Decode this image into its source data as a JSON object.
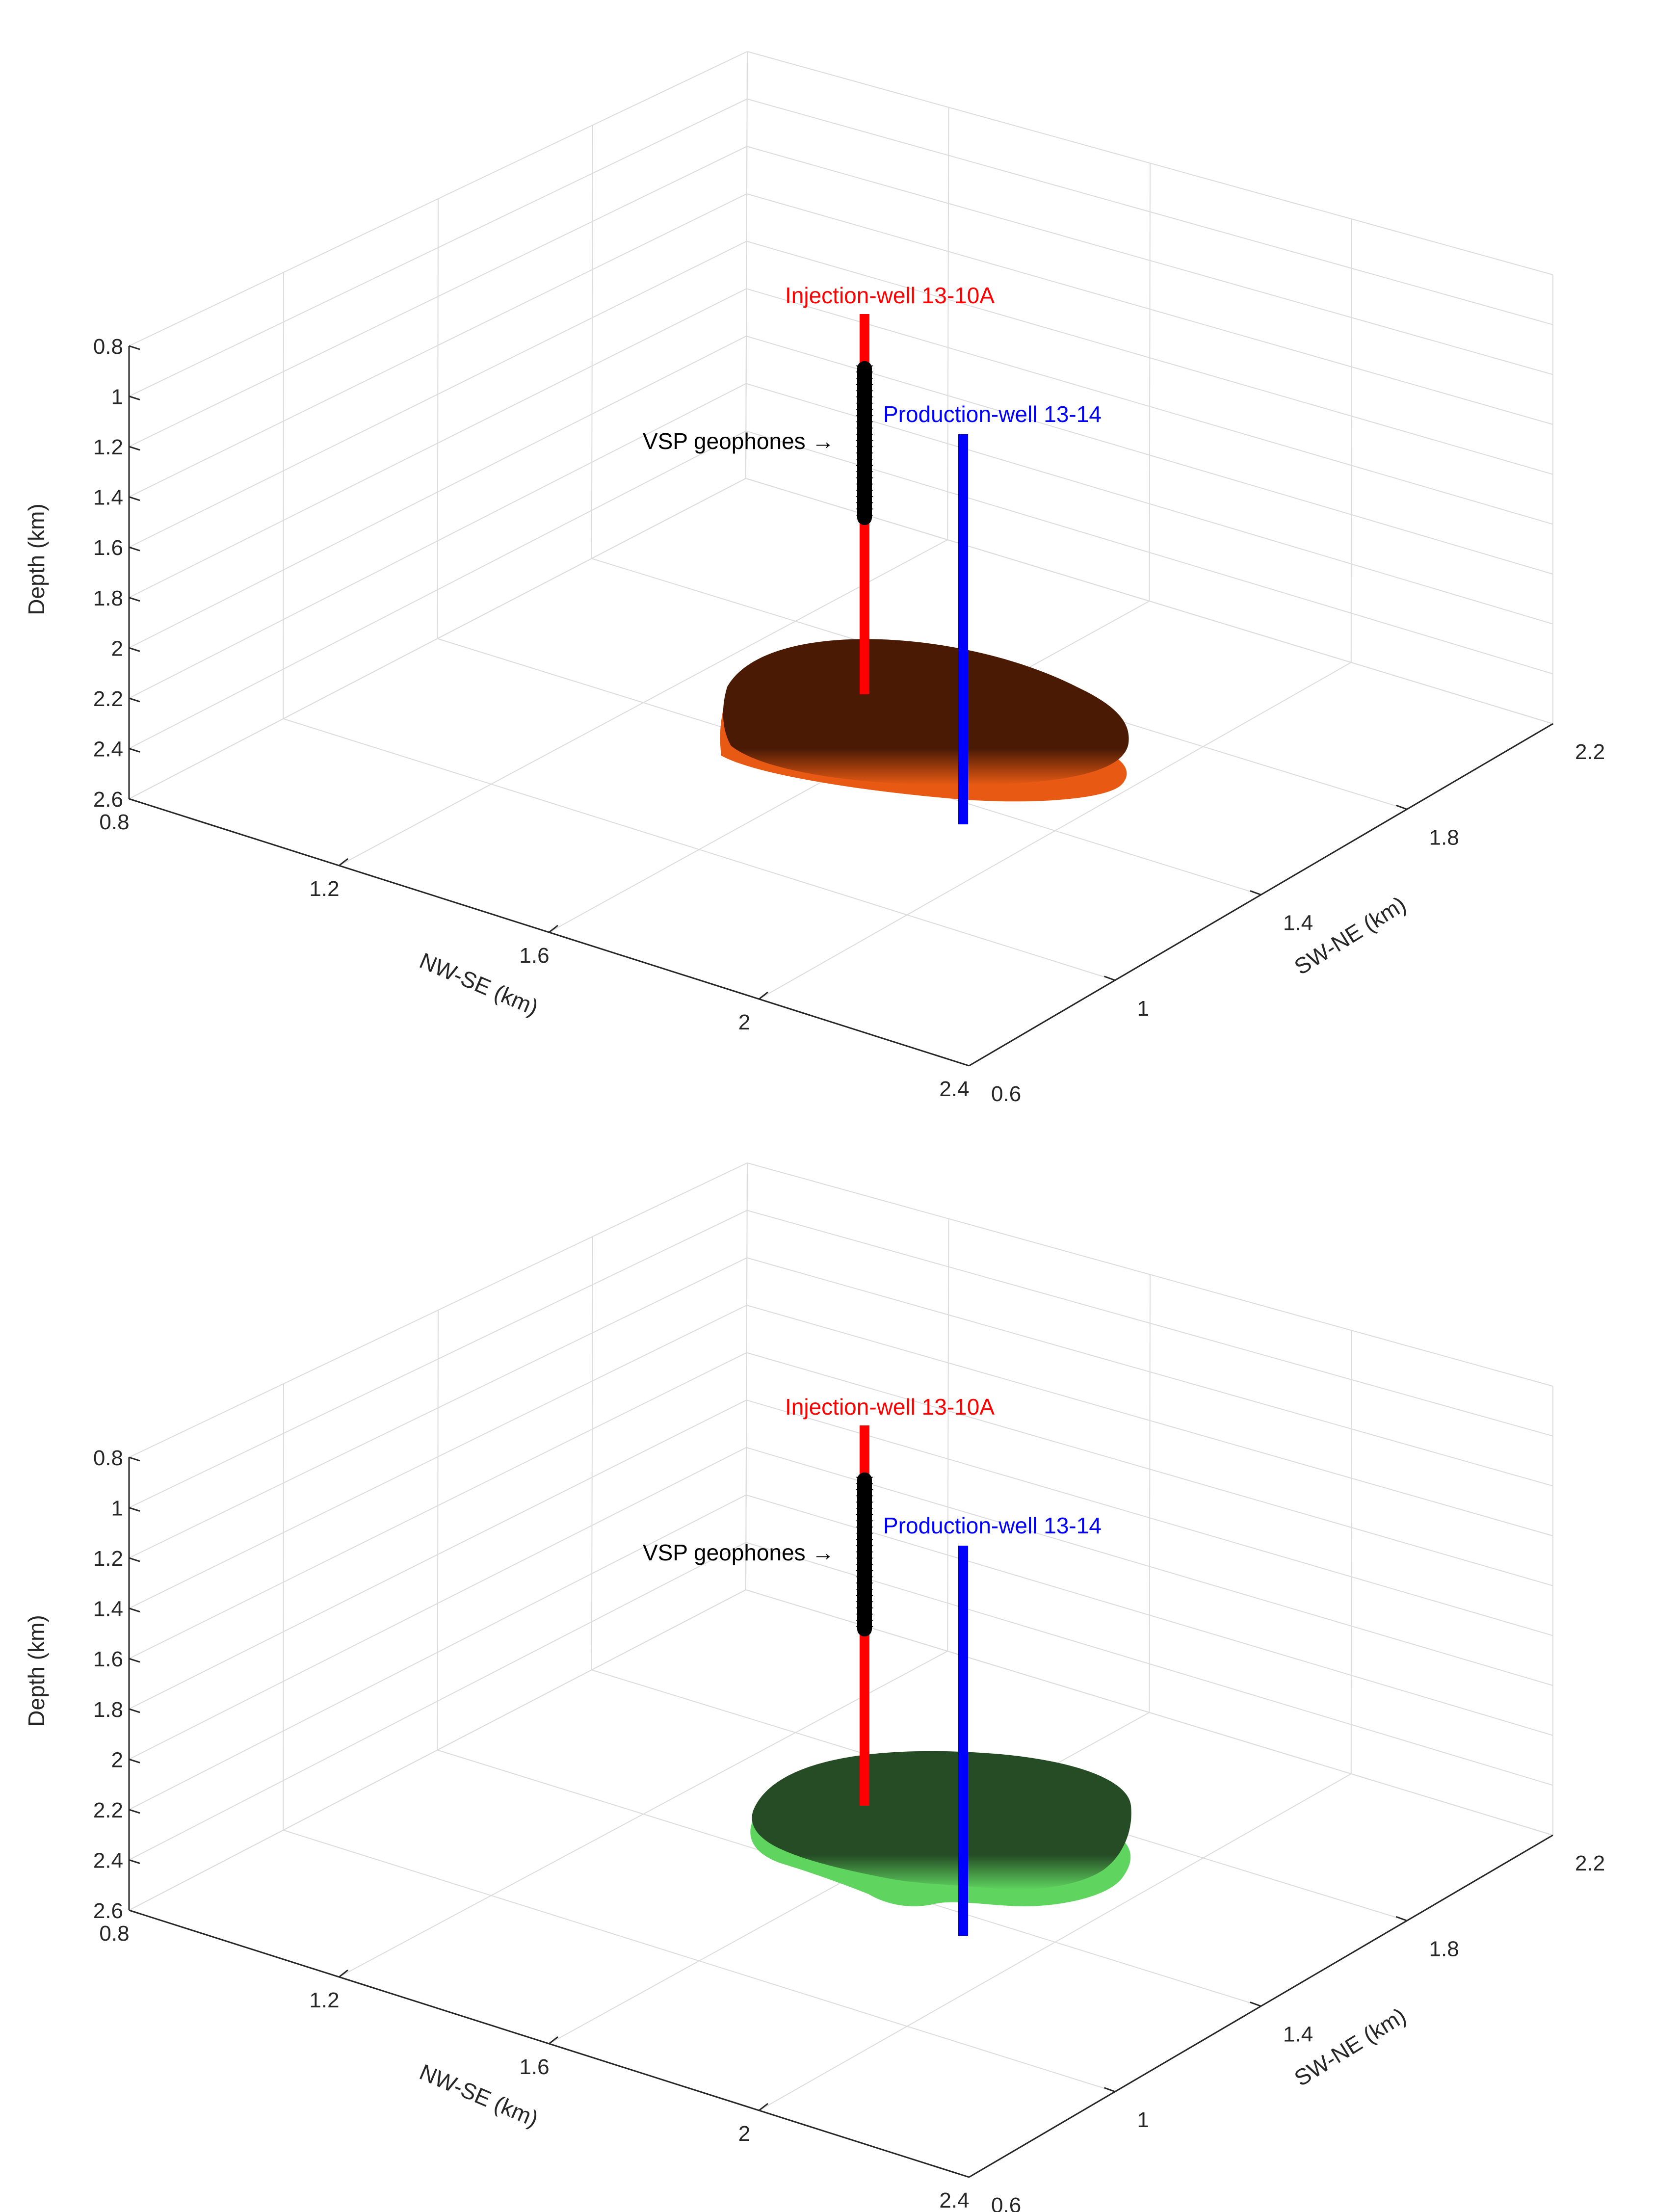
{
  "chart_data": [
    {
      "type": "3d-surface",
      "axes": {
        "depth": {
          "label": "Depth (km)",
          "ticks": [
            "0.8",
            "1",
            "1.2",
            "1.4",
            "1.6",
            "1.8",
            "2",
            "2.2",
            "2.4",
            "2.6"
          ],
          "range": [
            0.8,
            2.6
          ]
        },
        "nwse": {
          "label": "NW-SE (km)",
          "ticks": [
            "0.8",
            "1.2",
            "1.6",
            "2",
            "2.4"
          ],
          "range": [
            0.8,
            2.4
          ]
        },
        "swne": {
          "label": "SW-NE (km)",
          "ticks": [
            "0.6",
            "1",
            "1.4",
            "1.8",
            "2.2"
          ],
          "range": [
            0.6,
            2.2
          ]
        }
      },
      "grid": true,
      "annotations": {
        "injection_well": "Injection-well 13-10A",
        "production_well": "Production-well 13-14",
        "vsp": "VSP geophones →"
      },
      "wells": {
        "injection": {
          "color": "#ff0000",
          "depth_top": 0.8,
          "depth_bottom": 2.2
        },
        "production": {
          "color": "#0000ff",
          "depth_top": 1.2,
          "depth_bottom": 2.6
        },
        "geophones": {
          "color": "#000000",
          "depth_top": 1.0,
          "depth_bottom": 1.55
        }
      },
      "plume": {
        "top_color": "#4a1a05",
        "rim_color": "#e85a14",
        "depth": 2.25
      }
    },
    {
      "type": "3d-surface",
      "axes": {
        "depth": {
          "label": "Depth (km)",
          "ticks": [
            "0.8",
            "1",
            "1.2",
            "1.4",
            "1.6",
            "1.8",
            "2",
            "2.2",
            "2.4",
            "2.6"
          ],
          "range": [
            0.8,
            2.6
          ]
        },
        "nwse": {
          "label": "NW-SE (km)",
          "ticks": [
            "0.8",
            "1.2",
            "1.6",
            "2",
            "2.4"
          ],
          "range": [
            0.8,
            2.4
          ]
        },
        "swne": {
          "label": "SW-NE (km)",
          "ticks": [
            "0.6",
            "1",
            "1.4",
            "1.8",
            "2.2"
          ],
          "range": [
            0.6,
            2.2
          ]
        }
      },
      "grid": true,
      "annotations": {
        "injection_well": "Injection-well 13-10A",
        "production_well": "Production-well 13-14",
        "vsp": "VSP geophones →"
      },
      "wells": {
        "injection": {
          "color": "#ff0000",
          "depth_top": 0.8,
          "depth_bottom": 2.2
        },
        "production": {
          "color": "#0000ff",
          "depth_top": 1.2,
          "depth_bottom": 2.6
        },
        "geophones": {
          "color": "#000000",
          "depth_top": 1.0,
          "depth_bottom": 1.55
        }
      },
      "plume": {
        "top_color": "#264c26",
        "rim_color": "#5fd45f",
        "depth": 2.25
      }
    }
  ]
}
